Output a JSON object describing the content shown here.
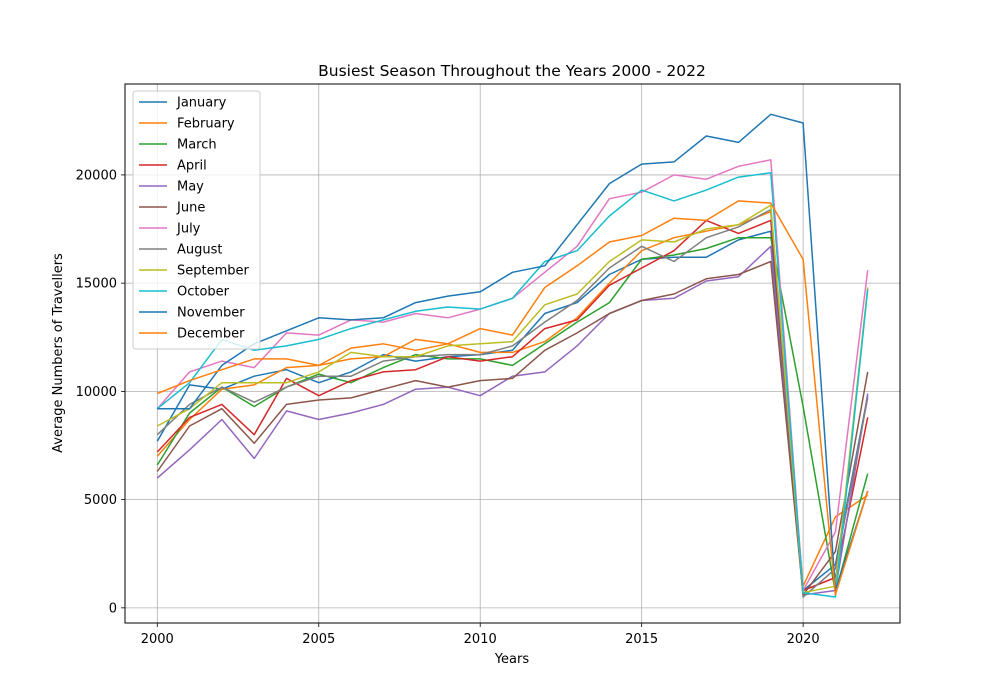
{
  "chart_data": {
    "type": "line",
    "title": "Busiest Season Throughout the Years 2000 - 2022",
    "xlabel": "Years",
    "ylabel": "Average Numbers of Travellers",
    "xlim": [
      1999,
      2023
    ],
    "ylim": [
      -700,
      24200
    ],
    "xticks": [
      2000,
      2005,
      2010,
      2015,
      2020
    ],
    "yticks": [
      0,
      5000,
      10000,
      15000,
      20000
    ],
    "grid": true,
    "legend_position": "upper-left",
    "x": [
      2000,
      2001,
      2002,
      2003,
      2004,
      2005,
      2006,
      2007,
      2008,
      2009,
      2010,
      2011,
      2012,
      2013,
      2014,
      2015,
      2016,
      2017,
      2018,
      2019,
      2020,
      2021,
      2022
    ],
    "series": [
      {
        "name": "January",
        "color": "#1f77b4",
        "values": [
          7700,
          10300,
          10100,
          10700,
          11000,
          10400,
          10900,
          11700,
          11400,
          11600,
          11700,
          11900,
          13600,
          14100,
          15400,
          16100,
          16200,
          16200,
          17000,
          17400,
          800,
          2000,
          9800
        ]
      },
      {
        "name": "February",
        "color": "#ff7f0e",
        "values": [
          7000,
          8700,
          10100,
          10300,
          11100,
          11200,
          11500,
          11600,
          12400,
          12200,
          11800,
          11800,
          12300,
          13400,
          15000,
          16500,
          17100,
          17400,
          17700,
          18300,
          1000,
          4200,
          5200
        ]
      },
      {
        "name": "March",
        "color": "#2ca02c",
        "values": [
          6600,
          9000,
          10200,
          9300,
          10200,
          10800,
          10400,
          11100,
          11700,
          11500,
          11500,
          11200,
          12200,
          13200,
          14100,
          16100,
          16300,
          16600,
          17100,
          17100,
          9300,
          700,
          6200
        ]
      },
      {
        "name": "April",
        "color": "#d62728",
        "values": [
          7200,
          8800,
          9400,
          8000,
          10600,
          9800,
          10500,
          10900,
          11000,
          11600,
          11400,
          11600,
          12900,
          13300,
          14900,
          15700,
          16500,
          17900,
          17300,
          17900,
          800,
          1400,
          8800
        ]
      },
      {
        "name": "May",
        "color": "#9467bd",
        "values": [
          6000,
          7300,
          8700,
          6900,
          9100,
          8700,
          9000,
          9400,
          10100,
          10200,
          9800,
          10700,
          10900,
          12100,
          13600,
          14200,
          14300,
          15100,
          15300,
          16700,
          600,
          800,
          9900
        ]
      },
      {
        "name": "June",
        "color": "#8c564b",
        "values": [
          6300,
          8400,
          9200,
          7600,
          9400,
          9600,
          9700,
          10100,
          10500,
          10200,
          10500,
          10600,
          11900,
          12700,
          13600,
          14200,
          14500,
          15200,
          15400,
          16000,
          600,
          2600,
          10900
        ]
      },
      {
        "name": "July",
        "color": "#e377c2",
        "values": [
          9200,
          10900,
          11400,
          11100,
          12700,
          12600,
          13300,
          13200,
          13600,
          13400,
          13800,
          14300,
          15500,
          16700,
          18900,
          19200,
          20000,
          19800,
          20400,
          20700,
          800,
          3500,
          15600
        ]
      },
      {
        "name": "August",
        "color": "#7f7f7f",
        "values": [
          8000,
          9400,
          10200,
          9500,
          10200,
          10700,
          10700,
          11400,
          11600,
          11700,
          11700,
          12100,
          13200,
          14200,
          15700,
          16700,
          16000,
          17100,
          17600,
          18400,
          500,
          1800,
          9700
        ]
      },
      {
        "name": "September",
        "color": "#bcbd22",
        "values": [
          8400,
          9200,
          10400,
          10400,
          10400,
          10900,
          11800,
          11600,
          11600,
          12100,
          12200,
          12300,
          14000,
          14500,
          16000,
          17000,
          16900,
          17500,
          17700,
          18600,
          700,
          1000,
          14800
        ]
      },
      {
        "name": "October",
        "color": "#17becf",
        "values": [
          9200,
          10400,
          12400,
          11900,
          12100,
          12400,
          12900,
          13300,
          13700,
          13900,
          13800,
          14300,
          16000,
          16500,
          18100,
          19300,
          18800,
          19300,
          19900,
          20100,
          700,
          500,
          14700
        ]
      },
      {
        "name": "November",
        "color": "#1f77b4",
        "values": [
          9200,
          9200,
          11200,
          12200,
          12800,
          13400,
          13300,
          13400,
          14100,
          14400,
          14600,
          15500,
          15800,
          17700,
          19600,
          20500,
          20600,
          21800,
          21500,
          22800,
          22400,
          800,
          5400
        ]
      },
      {
        "name": "December",
        "color": "#ff7f0e",
        "values": [
          9900,
          10500,
          11000,
          11500,
          11500,
          11200,
          12000,
          12200,
          11900,
          12200,
          12900,
          12600,
          14800,
          15800,
          16900,
          17200,
          18000,
          17900,
          18800,
          18700,
          16100,
          600,
          5400
        ]
      }
    ]
  }
}
